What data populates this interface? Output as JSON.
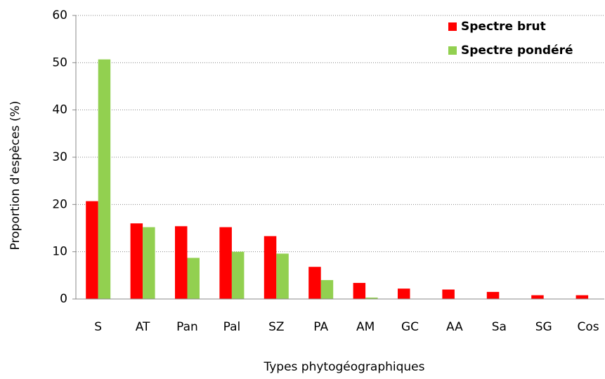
{
  "chart_data": {
    "type": "bar",
    "x_label": "Types phytogéographiques",
    "y_label": "Proportion d'espèces (%)",
    "categories": [
      "S",
      "AT",
      "Pan",
      "Pal",
      "SZ",
      "PA",
      "AM",
      "GC",
      "AA",
      "Sa",
      "SG",
      "Cos"
    ],
    "series": [
      {
        "name": "Spectre brut",
        "color": "#ff0000",
        "values": [
          20.7,
          16.0,
          15.4,
          15.2,
          13.3,
          6.8,
          3.4,
          2.2,
          2.0,
          1.5,
          0.8,
          0.8
        ]
      },
      {
        "name": "Spectre pondéré",
        "color": "#92d050",
        "values": [
          50.7,
          15.2,
          8.7,
          10.0,
          9.6,
          4.0,
          0.3,
          0,
          0,
          0,
          0,
          0
        ]
      }
    ],
    "ylim": [
      0,
      60
    ],
    "yticks": [
      0,
      10,
      20,
      30,
      40,
      50,
      60
    ],
    "grid": true,
    "legend": "top-right"
  }
}
